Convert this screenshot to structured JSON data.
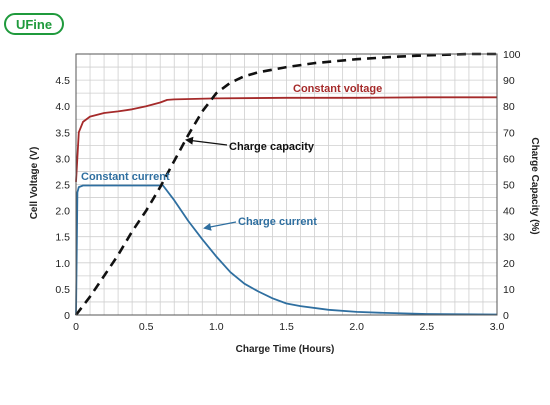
{
  "logo": {
    "text": "UFine",
    "color": "#1f9a3c"
  },
  "chart_data": {
    "type": "line",
    "xlabel": "Charge Time (Hours)",
    "ylabel": "Cell Voltage (V)",
    "y2label": "Charge Capacity (%)",
    "xlim": [
      0,
      3
    ],
    "ylim": [
      0,
      5
    ],
    "y2lim": [
      0,
      100
    ],
    "grid": true,
    "xticks": [
      "0",
      "0.5",
      "1.0",
      "1.5",
      "2.0",
      "2.5",
      "3.0"
    ],
    "yticks": [
      "0",
      "0.5",
      "1.0",
      "1.5",
      "2.0",
      "2.5",
      "3.0",
      "3.5",
      "4.0",
      "4.5"
    ],
    "y2ticks": [
      "0",
      "10",
      "20",
      "30",
      "40",
      "50",
      "60",
      "70",
      "80",
      "90",
      "100"
    ],
    "series": [
      {
        "label": "Constant voltage",
        "axis": "left",
        "color": "#a52a2a",
        "style": "solid",
        "x": [
          0,
          0.02,
          0.05,
          0.1,
          0.2,
          0.3,
          0.4,
          0.5,
          0.6,
          0.65,
          0.7,
          1.0,
          1.5,
          2.0,
          2.5,
          3.0
        ],
        "y": [
          2.55,
          3.5,
          3.7,
          3.8,
          3.87,
          3.9,
          3.94,
          4.0,
          4.07,
          4.12,
          4.13,
          4.15,
          4.16,
          4.16,
          4.17,
          4.17
        ]
      },
      {
        "label": "Constant current",
        "axis": "left",
        "color": "#2f6fa0",
        "style": "solid",
        "x": [
          0,
          0.01,
          0.02,
          0.05,
          0.1,
          0.3,
          0.5,
          0.62,
          0.7,
          0.8,
          0.9,
          1.0,
          1.1,
          1.2,
          1.3,
          1.4,
          1.5,
          1.6,
          1.8,
          2.0,
          2.2,
          2.5,
          3.0
        ],
        "y": [
          0,
          2.35,
          2.45,
          2.48,
          2.48,
          2.48,
          2.48,
          2.48,
          2.2,
          1.8,
          1.45,
          1.12,
          0.82,
          0.6,
          0.45,
          0.32,
          0.22,
          0.17,
          0.1,
          0.06,
          0.04,
          0.02,
          0.01
        ]
      },
      {
        "label": "Charge capacity",
        "axis": "right",
        "color": "#111111",
        "style": "dashed",
        "x": [
          0,
          0.1,
          0.2,
          0.3,
          0.4,
          0.5,
          0.6,
          0.7,
          0.8,
          0.9,
          1.0,
          1.1,
          1.2,
          1.3,
          1.5,
          1.7,
          2.0,
          2.3,
          2.5,
          2.8,
          3.0
        ],
        "y": [
          0,
          7,
          15,
          23,
          32,
          40,
          49,
          59,
          69,
          78,
          85,
          89,
          91.5,
          93,
          95,
          96.5,
          98,
          99,
          99.5,
          100,
          100
        ]
      }
    ],
    "annotations": [
      {
        "text": "Constant voltage",
        "color": "#a52a2a"
      },
      {
        "text": "Charge capacity",
        "color": "#111111"
      },
      {
        "text": "Constant current",
        "color": "#2f6fa0"
      },
      {
        "text": "Charge current",
        "color": "#2f6fa0"
      }
    ]
  }
}
